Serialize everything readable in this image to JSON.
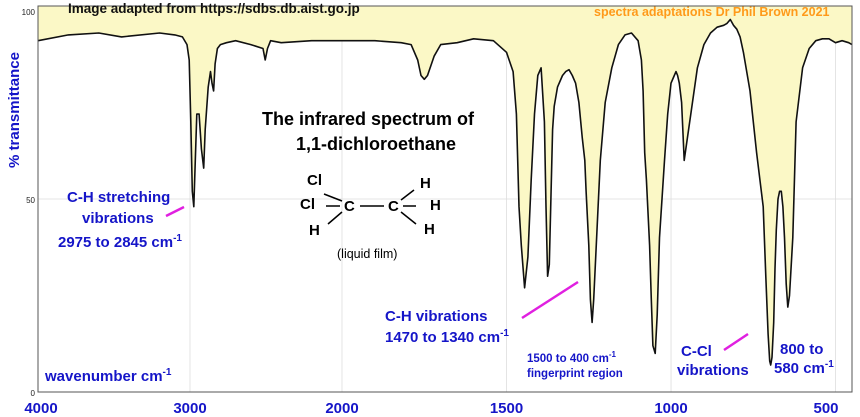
{
  "header": {
    "source": "Image adapted from https://sdbs.db.aist.go.jp",
    "credit": "spectra adaptations Dr Phil Brown 2021"
  },
  "title": {
    "line1": "The infrared spectrum of",
    "line2": "1,1-dichloroethane"
  },
  "molecule": {
    "atoms": [
      "Cl",
      "Cl",
      "C",
      "C",
      "H",
      "H",
      "H",
      "H"
    ],
    "note": "(liquid film)"
  },
  "annotations": {
    "ch_stretch": {
      "line1": "C-H stretching",
      "line2": "vibrations",
      "range": "2975 to 2845 cm",
      "sup": "-1"
    },
    "ch_vib": {
      "line1": "C-H vibrations",
      "range": "1470 to 1340 cm",
      "sup": "-1"
    },
    "fingerprint": {
      "line1": "1500 to 400 cm",
      "sup": "-1",
      "line2": "fingerprint region"
    },
    "ccl": {
      "line1": "C-Cl",
      "line2": "vibrations"
    },
    "ccl_range": {
      "line1": "800 to",
      "line2": "580 cm",
      "sup": "-1"
    },
    "xaxis_label": {
      "text": "wavenumber  cm",
      "sup": "-1"
    }
  },
  "colors": {
    "label_blue": "#1515c8",
    "pointer_magenta": "#e020e0",
    "fill_yellow": "#fbf8c6",
    "credit_orange": "#ff9a1a",
    "spectrum": "#111111"
  },
  "chart_data": {
    "type": "line",
    "xlabel": "wavenumber  cm-1",
    "ylabel": "% transmittance",
    "xlim": [
      4000,
      450
    ],
    "ylim": [
      0,
      100
    ],
    "x_ticks": [
      "4000",
      "3000",
      "2000",
      "1500",
      "1000",
      "500"
    ],
    "y_ticks": [
      "0",
      "50",
      "100"
    ],
    "grid": true,
    "series": [
      {
        "x": [
          4000,
          3800,
          3600,
          3450,
          3200,
          3100,
          3050,
          3020,
          3005,
          2995,
          2985,
          2975,
          2965,
          2955,
          2940,
          2925,
          2910,
          2900,
          2880,
          2865,
          2855,
          2845,
          2835,
          2820,
          2800,
          2760,
          2700,
          2600,
          2520,
          2505,
          2490,
          2470,
          2400,
          2200,
          2000,
          1900,
          1820,
          1790,
          1770,
          1760,
          1750,
          1740,
          1720,
          1700,
          1650,
          1600,
          1540,
          1500,
          1480,
          1470,
          1462,
          1455,
          1445,
          1435,
          1425,
          1415,
          1405,
          1395,
          1385,
          1380,
          1375,
          1370,
          1365,
          1360,
          1355,
          1345,
          1330,
          1320,
          1310,
          1300,
          1290,
          1280,
          1270,
          1262,
          1258,
          1250,
          1245,
          1240,
          1235,
          1225,
          1215,
          1200,
          1180,
          1160,
          1140,
          1120,
          1100,
          1090,
          1085,
          1080,
          1075,
          1065,
          1060,
          1055,
          1048,
          1042,
          1035,
          1020,
          1010,
          1000,
          990,
          985,
          980,
          975,
          968,
          960,
          940,
          920,
          900,
          880,
          860,
          840,
          830,
          820,
          810,
          800,
          790,
          780,
          760,
          740,
          720,
          712,
          705,
          700,
          697,
          693,
          688,
          684,
          680,
          675,
          670,
          665,
          660,
          655,
          650,
          645,
          640,
          630,
          620,
          600,
          580,
          560,
          540,
          520,
          500,
          480,
          460,
          450
        ],
        "y": [
          91,
          92.5,
          93,
          92,
          93,
          92.5,
          92,
          90,
          86,
          70,
          52,
          48,
          60,
          72,
          72,
          63,
          58,
          68,
          79,
          83,
          80,
          78,
          85,
          89,
          90,
          90.5,
          91,
          90,
          89,
          86,
          89,
          91,
          90.5,
          91,
          91,
          91,
          90.5,
          90,
          86,
          82,
          81,
          82,
          87,
          90,
          90.5,
          91.5,
          91,
          88,
          83,
          72,
          48,
          38,
          27,
          35,
          55,
          72,
          82,
          84,
          70,
          48,
          30,
          33,
          50,
          68,
          74,
          79,
          82,
          83,
          83.5,
          82,
          80,
          75,
          66,
          60,
          52,
          38,
          24,
          18,
          24,
          42,
          60,
          75,
          84,
          90,
          92.5,
          93,
          91,
          86,
          78,
          62,
          55,
          38,
          24,
          12,
          10,
          20,
          40,
          60,
          72,
          80,
          82,
          83,
          82,
          80,
          75,
          60,
          72,
          84,
          90,
          93,
          94.5,
          95,
          95.5,
          96.5,
          95,
          94,
          92,
          88,
          78,
          62,
          48,
          30,
          15,
          8,
          7,
          9,
          18,
          32,
          42,
          50,
          52,
          52,
          48,
          40,
          28,
          22,
          25,
          40,
          70,
          84,
          89,
          91,
          91.5,
          91.5,
          90.5,
          91,
          90.5,
          90
        ]
      }
    ]
  }
}
